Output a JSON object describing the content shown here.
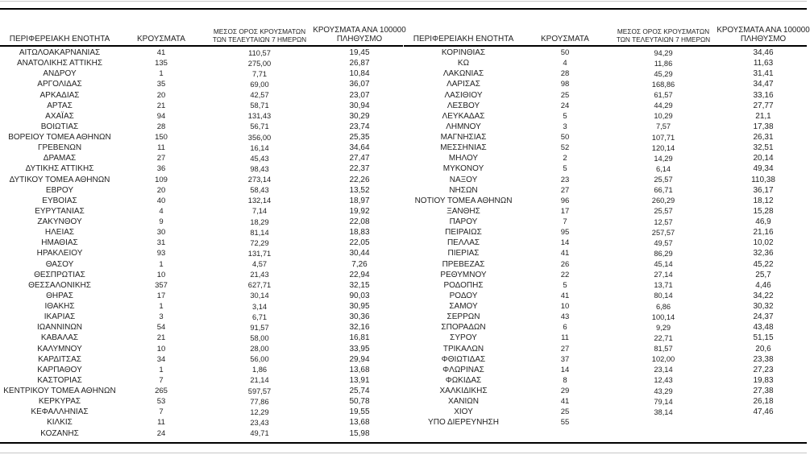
{
  "colors": {
    "text": "#1f1f1f",
    "rule_thick": "#000000",
    "rule_thin": "#c6c6c6",
    "background": "#ffffff"
  },
  "tables": [
    {
      "headers": {
        "region": "ΠΕΡΙΦΕΡΕΙΑΚΗ ΕΝΟΤΗΤΑ",
        "cases": "ΚΡΟΥΣΜΑΤΑ",
        "avg7_line1": "ΜΕΣΟΣ ΟΡΟΣ ΚΡΟΥΣΜΑΤΩΝ",
        "avg7_line2": "ΤΩΝ ΤΕΛΕΥΤΑΙΩΝ 7 ΗΜΕΡΩΝ",
        "per100k_line1": "ΚΡΟΥΣΜΑΤΑ ΑΝΑ 100000",
        "per100k_line2": "ΠΛΗΘΥΣΜΟ"
      },
      "rows": [
        [
          "ΑΙΤΩΛΟΑΚΑΡΝΑΝΙΑΣ",
          "41",
          "110,57",
          "19,45"
        ],
        [
          "ΑΝΑΤΟΛΙΚΗΣ ΑΤΤΙΚΗΣ",
          "135",
          "275,00",
          "26,87"
        ],
        [
          "ΑΝΔΡΟΥ",
          "1",
          "7,71",
          "10,84"
        ],
        [
          "ΑΡΓΟΛΙΔΑΣ",
          "35",
          "69,00",
          "36,07"
        ],
        [
          "ΑΡΚΑΔΙΑΣ",
          "20",
          "42,57",
          "23,07"
        ],
        [
          "ΑΡΤΑΣ",
          "21",
          "58,71",
          "30,94"
        ],
        [
          "ΑΧΑΪΑΣ",
          "94",
          "131,43",
          "30,29"
        ],
        [
          "ΒΟΙΩΤΙΑΣ",
          "28",
          "56,71",
          "23,74"
        ],
        [
          "ΒΟΡΕΙΟΥ ΤΟΜΕΑ ΑΘΗΝΩΝ",
          "150",
          "356,00",
          "25,35"
        ],
        [
          "ΓΡΕΒΕΝΩΝ",
          "11",
          "16,14",
          "34,64"
        ],
        [
          "ΔΡΑΜΑΣ",
          "27",
          "45,43",
          "27,47"
        ],
        [
          "ΔΥΤΙΚΗΣ ΑΤΤΙΚΗΣ",
          "36",
          "98,43",
          "22,37"
        ],
        [
          "ΔΥΤΙΚΟΥ ΤΟΜΕΑ ΑΘΗΝΩΝ",
          "109",
          "273,14",
          "22,26"
        ],
        [
          "ΕΒΡΟΥ",
          "20",
          "58,43",
          "13,52"
        ],
        [
          "ΕΥΒΟΙΑΣ",
          "40",
          "132,14",
          "18,97"
        ],
        [
          "ΕΥΡΥΤΑΝΙΑΣ",
          "4",
          "7,14",
          "19,92"
        ],
        [
          "ΖΑΚΥΝΘΟΥ",
          "9",
          "18,29",
          "22,08"
        ],
        [
          "ΗΛΕΙΑΣ",
          "30",
          "81,14",
          "18,83"
        ],
        [
          "ΗΜΑΘΙΑΣ",
          "31",
          "72,29",
          "22,05"
        ],
        [
          "ΗΡΑΚΛΕΙΟΥ",
          "93",
          "131,71",
          "30,44"
        ],
        [
          "ΘΑΣΟΥ",
          "1",
          "4,57",
          "7,26"
        ],
        [
          "ΘΕΣΠΡΩΤΙΑΣ",
          "10",
          "21,43",
          "22,94"
        ],
        [
          "ΘΕΣΣΑΛΟΝΙΚΗΣ",
          "357",
          "627,71",
          "32,15"
        ],
        [
          "ΘΗΡΑΣ",
          "17",
          "30,14",
          "90,03"
        ],
        [
          "ΙΘΑΚΗΣ",
          "1",
          "3,14",
          "30,95"
        ],
        [
          "ΙΚΑΡΙΑΣ",
          "3",
          "6,71",
          "30,36"
        ],
        [
          "ΙΩΑΝΝΙΝΩΝ",
          "54",
          "91,57",
          "32,16"
        ],
        [
          "ΚΑΒΑΛΑΣ",
          "21",
          "58,00",
          "16,81"
        ],
        [
          "ΚΑΛΥΜΝΟΥ",
          "10",
          "28,00",
          "33,95"
        ],
        [
          "ΚΑΡΔΙΤΣΑΣ",
          "34",
          "56,00",
          "29,94"
        ],
        [
          "ΚΑΡΠΑΘΟΥ",
          "1",
          "1,86",
          "13,68"
        ],
        [
          "ΚΑΣΤΟΡΙΑΣ",
          "7",
          "21,14",
          "13,91"
        ],
        [
          "ΚΕΝΤΡΙΚΟΥ ΤΟΜΕΑ ΑΘΗΝΩΝ",
          "265",
          "597,57",
          "25,74"
        ],
        [
          "ΚΕΡΚΥΡΑΣ",
          "53",
          "77,86",
          "50,78"
        ],
        [
          "ΚΕΦΑΛΛΗΝΙΑΣ",
          "7",
          "12,29",
          "19,55"
        ],
        [
          "ΚΙΛΚΙΣ",
          "11",
          "23,43",
          "13,68"
        ],
        [
          "ΚΟΖΑΝΗΣ",
          "24",
          "49,71",
          "15,98"
        ]
      ]
    },
    {
      "headers": {
        "region": "ΠΕΡΙΦΕΡΕΙΑΚΗ ΕΝΟΤΗΤΑ",
        "cases": "ΚΡΟΥΣΜΑΤΑ",
        "avg7_line1": "ΜΕΣΟΣ ΟΡΟΣ ΚΡΟΥΣΜΑΤΩΝ",
        "avg7_line2": "ΤΩΝ ΤΕΛΕΥΤΑΙΩΝ 7 ΗΜΕΡΩΝ",
        "per100k_line1": "ΚΡΟΥΣΜΑΤΑ ΑΝΑ 100000",
        "per100k_line2": "ΠΛΗΘΥΣΜΟ"
      },
      "rows": [
        [
          "ΚΟΡΙΝΘΙΑΣ",
          "50",
          "94,29",
          "34,46"
        ],
        [
          "ΚΩ",
          "4",
          "11,86",
          "11,63"
        ],
        [
          "ΛΑΚΩΝΙΑΣ",
          "28",
          "45,29",
          "31,41"
        ],
        [
          "ΛΑΡΙΣΑΣ",
          "98",
          "168,86",
          "34,47"
        ],
        [
          "ΛΑΣΙΘΙΟΥ",
          "25",
          "61,57",
          "33,16"
        ],
        [
          "ΛΕΣΒΟΥ",
          "24",
          "44,29",
          "27,77"
        ],
        [
          "ΛΕΥΚΑΔΑΣ",
          "5",
          "10,29",
          "21,1"
        ],
        [
          "ΛΗΜΝΟΥ",
          "3",
          "7,57",
          "17,38"
        ],
        [
          "ΜΑΓΝΗΣΙΑΣ",
          "50",
          "107,71",
          "26,31"
        ],
        [
          "ΜΕΣΣΗΝΙΑΣ",
          "52",
          "120,14",
          "32,51"
        ],
        [
          "ΜΗΛΟΥ",
          "2",
          "14,29",
          "20,14"
        ],
        [
          "ΜΥΚΟΝΟΥ",
          "5",
          "6,14",
          "49,34"
        ],
        [
          "ΝΑΞΟΥ",
          "23",
          "25,57",
          "110,38"
        ],
        [
          "ΝΗΣΩΝ",
          "27",
          "66,71",
          "36,17"
        ],
        [
          "ΝΟΤΙΟΥ ΤΟΜΕΑ ΑΘΗΝΩΝ",
          "96",
          "260,29",
          "18,12"
        ],
        [
          "ΞΑΝΘΗΣ",
          "17",
          "25,57",
          "15,28"
        ],
        [
          "ΠΑΡΟΥ",
          "7",
          "12,57",
          "46,9"
        ],
        [
          "ΠΕΙΡΑΙΩΣ",
          "95",
          "257,57",
          "21,16"
        ],
        [
          "ΠΕΛΛΑΣ",
          "14",
          "49,57",
          "10,02"
        ],
        [
          "ΠΙΕΡΙΑΣ",
          "41",
          "86,29",
          "32,36"
        ],
        [
          "ΠΡΕΒΕΖΑΣ",
          "26",
          "45,14",
          "45,22"
        ],
        [
          "ΡΕΘΥΜΝΟΥ",
          "22",
          "27,14",
          "25,7"
        ],
        [
          "ΡΟΔΟΠΗΣ",
          "5",
          "13,71",
          "4,46"
        ],
        [
          "ΡΟΔΟΥ",
          "41",
          "80,14",
          "34,22"
        ],
        [
          "ΣΑΜΟΥ",
          "10",
          "6,86",
          "30,32"
        ],
        [
          "ΣΕΡΡΩΝ",
          "43",
          "100,14",
          "24,37"
        ],
        [
          "ΣΠΟΡΑΔΩΝ",
          "6",
          "9,29",
          "43,48"
        ],
        [
          "ΣΥΡΟΥ",
          "11",
          "22,71",
          "51,15"
        ],
        [
          "ΤΡΙΚΑΛΩΝ",
          "27",
          "81,57",
          "20,6"
        ],
        [
          "ΦΘΙΩΤΙΔΑΣ",
          "37",
          "102,00",
          "23,38"
        ],
        [
          "ΦΛΩΡΙΝΑΣ",
          "14",
          "23,14",
          "27,23"
        ],
        [
          "ΦΩΚΙΔΑΣ",
          "8",
          "12,43",
          "19,83"
        ],
        [
          "ΧΑΛΚΙΔΙΚΗΣ",
          "29",
          "43,29",
          "27,38"
        ],
        [
          "ΧΑΝΙΩΝ",
          "41",
          "79,14",
          "26,18"
        ],
        [
          "ΧΙΟΥ",
          "25",
          "38,14",
          "47,46"
        ],
        [
          "ΥΠΟ ΔΙΕΡΕΥΝΗΣΗ",
          "55",
          "",
          ""
        ]
      ]
    }
  ]
}
